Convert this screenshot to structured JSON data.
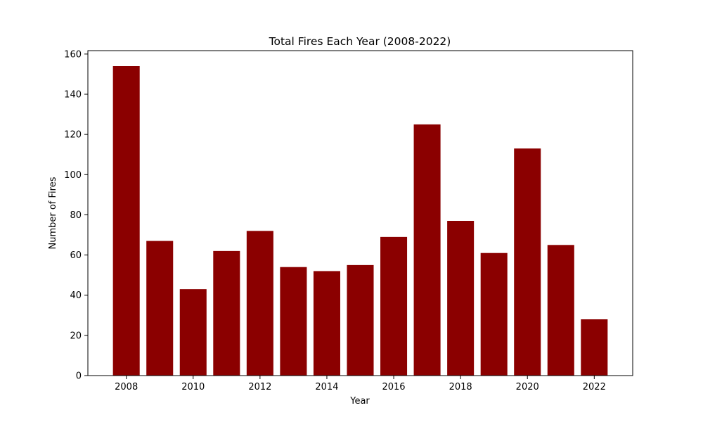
{
  "chart_data": {
    "type": "bar",
    "title": "Total Fires Each Year (2008-2022)",
    "xlabel": "Year",
    "ylabel": "Number of Fires",
    "categories": [
      2008,
      2009,
      2010,
      2011,
      2012,
      2013,
      2014,
      2015,
      2016,
      2017,
      2018,
      2019,
      2020,
      2021,
      2022
    ],
    "values": [
      154,
      67,
      43,
      62,
      72,
      54,
      52,
      55,
      69,
      125,
      77,
      61,
      113,
      65,
      28
    ],
    "x_ticks": [
      "2008",
      "2010",
      "2012",
      "2014",
      "2016",
      "2018",
      "2020",
      "2022"
    ],
    "y_ticks": [
      0,
      20,
      40,
      60,
      80,
      100,
      120,
      140,
      160
    ],
    "xlim": [
      2006.85,
      2023.15
    ],
    "ylim": [
      0,
      161.7
    ],
    "bar_color": "#8b0000",
    "grid": false,
    "legend": false
  }
}
